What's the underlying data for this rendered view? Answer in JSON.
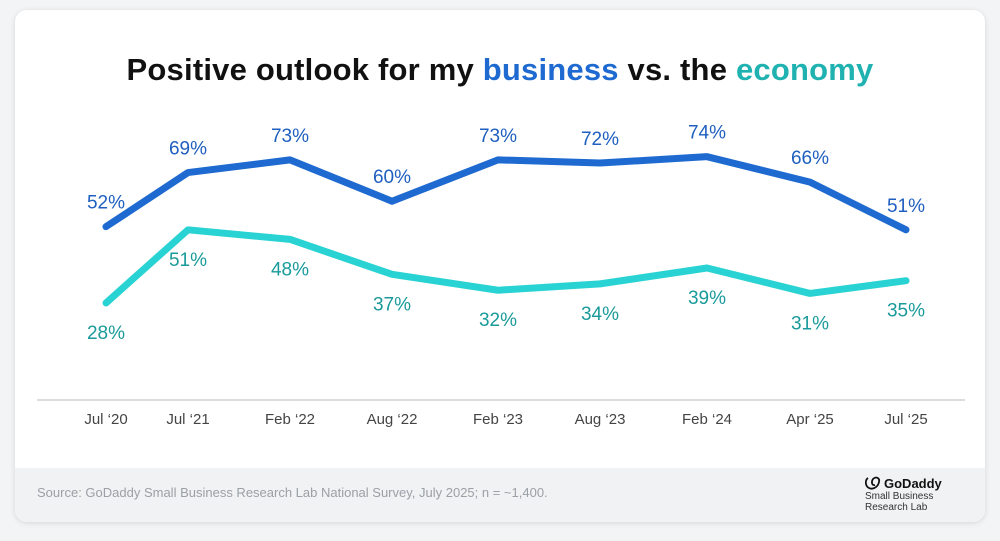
{
  "chart_data": {
    "type": "line",
    "title": {
      "prefix": "Positive outlook for my ",
      "highlight1": "business",
      "middle": " vs. the ",
      "highlight2": "economy"
    },
    "categories": [
      "Jul ‘20",
      "Jul ‘21",
      "Feb ‘22",
      "Aug ‘22",
      "Feb ‘23",
      "Aug ‘23",
      "Feb ‘24",
      "Apr ‘25",
      "Jul ‘25"
    ],
    "series": [
      {
        "key": "business",
        "color": "#1e6ad0",
        "label_color": "#1e5fbf",
        "values": [
          52,
          69,
          73,
          60,
          73,
          72,
          74,
          66,
          51
        ],
        "labels": [
          "52%",
          "69%",
          "73%",
          "60%",
          "73%",
          "72%",
          "74%",
          "66%",
          "51%"
        ]
      },
      {
        "key": "economy",
        "color": "#2ad3d3",
        "label_color": "#1a9a9a",
        "values": [
          28,
          51,
          48,
          37,
          32,
          34,
          39,
          31,
          35
        ],
        "labels": [
          "28%",
          "51%",
          "48%",
          "37%",
          "32%",
          "34%",
          "39%",
          "31%",
          "35%"
        ]
      }
    ],
    "ylim": [
      0,
      100
    ],
    "grid": false,
    "legend": "title-colored words"
  },
  "footer": {
    "source": "Source: GoDaddy Small Business Research Lab National Survey, July 2025; n = ~1,400."
  },
  "logo": {
    "brand": "GoDaddy",
    "line1": "Small Business",
    "line2": "Research Lab"
  }
}
